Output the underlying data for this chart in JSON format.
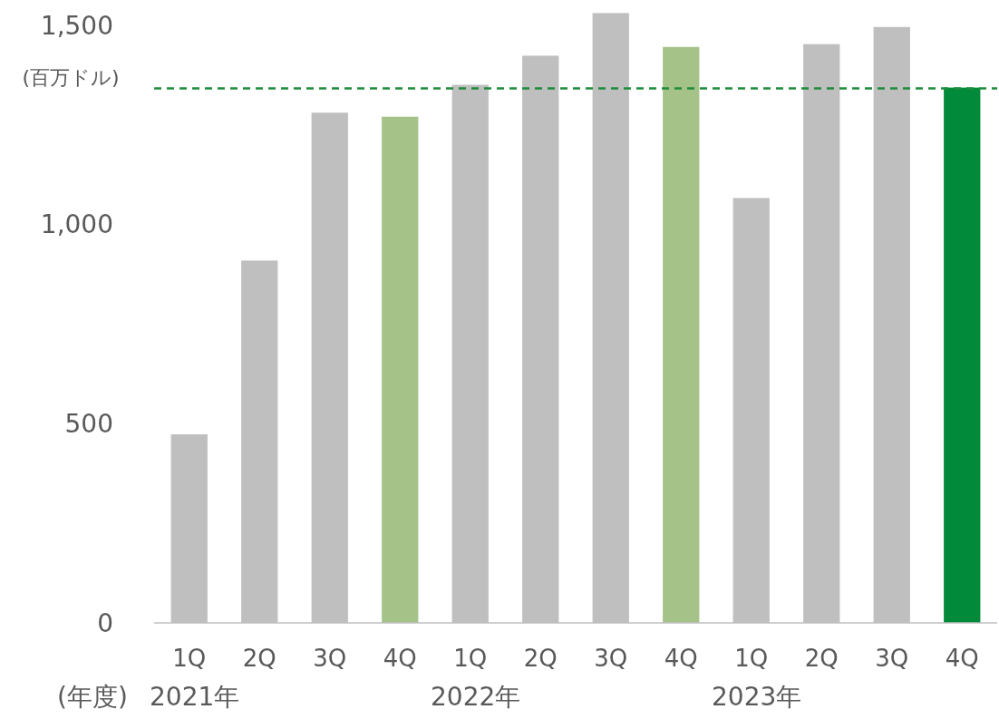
{
  "chart_data": {
    "type": "bar",
    "ylabel": "(百万ドル)",
    "categories": [
      "1Q",
      "2Q",
      "3Q",
      "4Q",
      "1Q",
      "2Q",
      "3Q",
      "4Q",
      "1Q",
      "2Q",
      "3Q",
      "4Q"
    ],
    "values": [
      473,
      909,
      1280,
      1270,
      1350,
      1423,
      1530,
      1445,
      1066,
      1452,
      1495,
      1343
    ],
    "colors": [
      "#bfbfbf",
      "#bfbfbf",
      "#bfbfbf",
      "#a5c389",
      "#bfbfbf",
      "#bfbfbf",
      "#bfbfbf",
      "#a5c389",
      "#bfbfbf",
      "#bfbfbf",
      "#bfbfbf",
      "#008a3a"
    ],
    "ylim": [
      0,
      1540
    ],
    "yticks": [
      0,
      {
        "value": 500,
        "label": "500"
      },
      {
        "value": 1000,
        "label": "1,000"
      },
      {
        "value": 1500,
        "label": "1,500"
      }
    ],
    "grid": false,
    "ref_lines": [
      {
        "axis": "y",
        "value": 1341,
        "color": "#1e8c3c",
        "line_style": "dashed"
      }
    ],
    "annotations": [
      "(年度)",
      "2021年",
      "2022年",
      "2023年"
    ]
  }
}
